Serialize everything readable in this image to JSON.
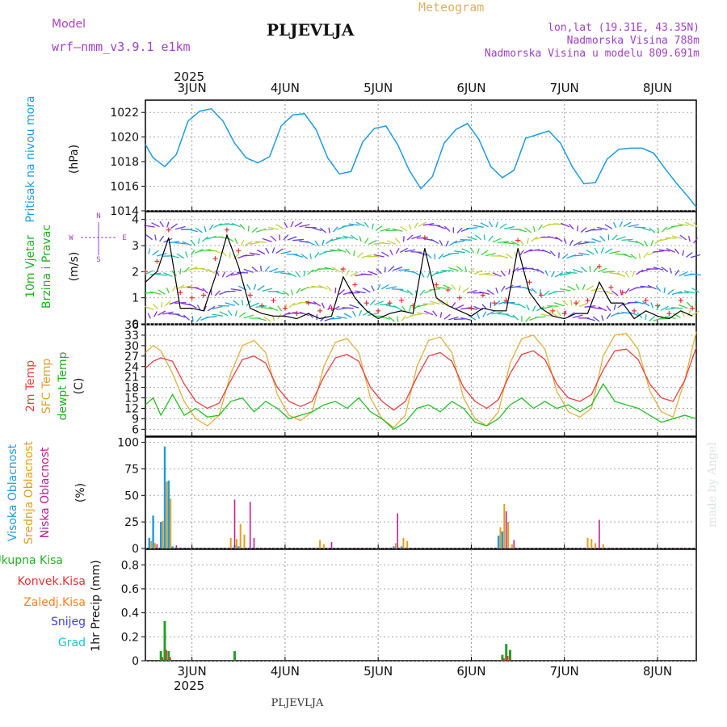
{
  "header": {
    "model_label": "Model",
    "model_name": "wrf—nmm_v3.9.1  e1km",
    "station": "PLJEVLJA",
    "product": "Meteogram",
    "coords": "lon,lat (19.31E, 43.35N)",
    "elevation": "Nadmorska Visina 788m",
    "model_elevation": "Nadmorska Visina u modelu 809.691m",
    "footer_station": "PLJEVLJA",
    "credit": "made by Angel"
  },
  "colors": {
    "pressure": "#1e9be0",
    "speed": "#000000",
    "gust": "#e83030",
    "temp2m": "#e84040",
    "sfc": "#e0b040",
    "dewpt": "#22c022",
    "cloud_high": "#1e9be0",
    "cloud_mid": "#e0a020",
    "cloud_low": "#c02090",
    "precip_total": "#22a022",
    "precip_conv": "#e83030",
    "precip_frz": "#ff8020",
    "snow": "#4040e0",
    "graupel": "#20c0c0"
  },
  "time_axis": {
    "year": "2025",
    "days": [
      "3JUN",
      "4JUN",
      "5JUN",
      "6JUN",
      "7JUN",
      "8JUN"
    ],
    "range_hours": [
      0,
      142
    ]
  },
  "chart_data": [
    {
      "type": "line",
      "panel": "pressure",
      "ylabel_lines": [
        "Pritisak na nivou mora",
        "(hPa)"
      ],
      "yticks": [
        "1014",
        "1016",
        "1018",
        "1020",
        "1022"
      ],
      "ylim": [
        1014,
        1023
      ],
      "grid": true,
      "series": [
        {
          "x": [
            0,
            2,
            5,
            8,
            11,
            14,
            17,
            20,
            23,
            26,
            29,
            32,
            35,
            38,
            41,
            44,
            47,
            50,
            53,
            56,
            59,
            62,
            65,
            68,
            71,
            74,
            77,
            80,
            83,
            86,
            89,
            92,
            95,
            98,
            101,
            104,
            107,
            110,
            113,
            116,
            119,
            122,
            125,
            128,
            131,
            134,
            137,
            140,
            142
          ],
          "values": [
            1019.4,
            1018.3,
            1017.6,
            1018.6,
            1021.3,
            1022.1,
            1022.3,
            1021.3,
            1019.5,
            1018.3,
            1017.9,
            1018.4,
            1020.9,
            1021.8,
            1021.9,
            1020.6,
            1018.3,
            1017.0,
            1017.2,
            1019.6,
            1020.7,
            1020.9,
            1019.4,
            1017.3,
            1015.8,
            1016.8,
            1019.5,
            1020.6,
            1021.1,
            1019.8,
            1017.6,
            1016.7,
            1017.3,
            1019.9,
            1020.2,
            1020.5,
            1019.5,
            1017.6,
            1016.2,
            1016.3,
            1018.2,
            1019.0,
            1019.1,
            1019.1,
            1018.7,
            1017.4,
            1016.2,
            1015.1,
            1014.3
          ]
        }
      ]
    },
    {
      "type": "line",
      "panel": "wind",
      "ylabel_lines": [
        "10m Vjetar",
        "Brzina i Pravac",
        "(m/s)"
      ],
      "compass": {
        "n": "N",
        "w": "W",
        "e": "E",
        "s": "S"
      },
      "yticks": [
        "0",
        "1",
        "2",
        "3",
        "4"
      ],
      "ylim": [
        0,
        4.3
      ],
      "grid": true,
      "series": [
        {
          "name": "speed",
          "x": [
            0,
            3,
            6,
            9,
            12,
            15,
            18,
            21,
            24,
            27,
            30,
            33,
            36,
            39,
            42,
            45,
            48,
            51,
            54,
            57,
            60,
            63,
            66,
            69,
            72,
            75,
            78,
            81,
            84,
            87,
            90,
            93,
            96,
            99,
            102,
            105,
            108,
            111,
            114,
            117,
            120,
            123,
            126,
            129,
            132,
            135,
            138,
            141
          ],
          "values": [
            1.6,
            2.0,
            3.3,
            0.6,
            0.6,
            0.5,
            1.8,
            3.4,
            2.2,
            0.6,
            0.4,
            0.3,
            0.3,
            0.2,
            0.4,
            0.2,
            0.3,
            1.8,
            1.0,
            0.5,
            0.2,
            0.4,
            0.5,
            0.4,
            2.9,
            1.0,
            0.7,
            0.5,
            0.3,
            0.6,
            0.5,
            0.5,
            2.9,
            1.2,
            0.6,
            0.3,
            0.2,
            0.4,
            0.4,
            1.6,
            0.8,
            0.8,
            0.2,
            0.5,
            0.3,
            0.2,
            0.5,
            0.3
          ]
        },
        {
          "name": "gust",
          "x": [
            0,
            3,
            6,
            9,
            12,
            15,
            18,
            21,
            24,
            27,
            30,
            33,
            36,
            39,
            42,
            45,
            48,
            51,
            54,
            57,
            60,
            63,
            66,
            69,
            72,
            75,
            78,
            81,
            84,
            87,
            90,
            93,
            96,
            99,
            102,
            105,
            108,
            111,
            114,
            117,
            120,
            123,
            126,
            129,
            132,
            135,
            138,
            141
          ],
          "values": [
            2.0,
            2.4,
            3.6,
            1.2,
            1.0,
            1.1,
            2.5,
            3.6,
            2.8,
            1.1,
            0.7,
            0.9,
            0.6,
            0.4,
            0.8,
            0.5,
            0.6,
            2.1,
            1.5,
            0.8,
            0.5,
            0.8,
            0.9,
            0.7,
            3.3,
            1.5,
            1.3,
            1.0,
            0.6,
            1.1,
            0.8,
            0.9,
            3.2,
            1.6,
            1.1,
            0.5,
            0.4,
            0.8,
            0.9,
            2.2,
            1.4,
            1.2,
            0.5,
            0.9,
            0.7,
            0.4,
            0.9,
            0.6
          ]
        }
      ]
    },
    {
      "type": "line",
      "panel": "temperature",
      "ylabel_lines": [
        "2m Temp",
        "SFC Temp",
        "dewpt Temp",
        "(C)"
      ],
      "yticks": [
        "6",
        "9",
        "12",
        "15",
        "18",
        "21",
        "24",
        "27",
        "30",
        "33",
        "36"
      ],
      "ylim": [
        4,
        36
      ],
      "grid": true,
      "series": [
        {
          "name": "2m Temp",
          "x": [
            0,
            2,
            4,
            7,
            10,
            13,
            16,
            19,
            22,
            25,
            28,
            31,
            34,
            37,
            40,
            43,
            46,
            49,
            52,
            55,
            58,
            61,
            64,
            67,
            70,
            73,
            76,
            79,
            82,
            85,
            88,
            91,
            94,
            97,
            100,
            103,
            106,
            109,
            112,
            115,
            118,
            121,
            124,
            127,
            130,
            133,
            136,
            139,
            142
          ],
          "values": [
            23.5,
            25.5,
            26.5,
            25.5,
            19,
            14,
            12,
            13.5,
            20,
            26,
            27,
            25,
            18,
            14,
            12.5,
            14,
            21,
            26.5,
            27.5,
            25.5,
            18,
            14,
            11.5,
            14,
            21,
            27,
            28,
            25.5,
            18,
            14,
            12,
            14.5,
            22,
            27.5,
            28.5,
            26,
            19,
            15,
            14,
            16,
            23,
            28.5,
            29,
            26,
            19,
            15,
            14,
            20,
            29.5
          ]
        },
        {
          "name": "SFC Temp",
          "x": [
            0,
            2,
            4,
            7,
            10,
            13,
            16,
            19,
            22,
            25,
            28,
            31,
            34,
            37,
            40,
            43,
            46,
            49,
            52,
            55,
            58,
            61,
            64,
            67,
            70,
            73,
            76,
            79,
            82,
            85,
            88,
            91,
            94,
            97,
            100,
            103,
            106,
            109,
            112,
            115,
            118,
            121,
            124,
            127,
            130,
            133,
            136,
            139,
            142
          ],
          "values": [
            28,
            30,
            28.5,
            22,
            14,
            9,
            7,
            10,
            22,
            30,
            31.5,
            28,
            16,
            10,
            8.5,
            11,
            24,
            31,
            32,
            28,
            15,
            9,
            6.5,
            10,
            24,
            31.5,
            32.5,
            28,
            15,
            9,
            7,
            11,
            25,
            32,
            33,
            29,
            17,
            11,
            9.5,
            12,
            27,
            33,
            33.5,
            29,
            17,
            11,
            9.5,
            20,
            34
          ]
        },
        {
          "name": "dewpt Temp",
          "x": [
            0,
            2,
            4,
            7,
            10,
            13,
            16,
            19,
            22,
            25,
            28,
            31,
            34,
            37,
            40,
            43,
            46,
            49,
            52,
            55,
            58,
            61,
            64,
            67,
            70,
            73,
            76,
            79,
            82,
            85,
            88,
            91,
            94,
            97,
            100,
            103,
            106,
            109,
            112,
            115,
            118,
            121,
            124,
            127,
            130,
            133,
            136,
            139,
            142
          ],
          "values": [
            13,
            15,
            10,
            16,
            10,
            12,
            9.5,
            10,
            14,
            15,
            11,
            14,
            12,
            9,
            10,
            11,
            13,
            14,
            12,
            15,
            11,
            9,
            6,
            8,
            12,
            13,
            11,
            14,
            12,
            8,
            7,
            9,
            13,
            15,
            12,
            14,
            12,
            13,
            11,
            13,
            19,
            14,
            13,
            12,
            10,
            8,
            9,
            10,
            9
          ]
        }
      ]
    },
    {
      "type": "bar",
      "panel": "cloud",
      "ylabel_lines": [
        "Visoka Oblacnost",
        "Srednja Oblacnost",
        "Niska Oblacnost",
        "(%)"
      ],
      "yticks": [
        "0",
        "25",
        "50",
        "75",
        "100"
      ],
      "ylim": [
        0,
        105
      ],
      "grid": true,
      "series": [
        {
          "name": "Visoka Oblacnost",
          "x": [
            1,
            2,
            4,
            5,
            6,
            7,
            23,
            24,
            64,
            66,
            91,
            92
          ],
          "values": [
            10,
            31,
            25,
            96,
            64,
            2,
            3,
            2,
            2,
            2,
            12,
            16
          ]
        },
        {
          "name": "Srednja Oblacnost",
          "x": [
            1.5,
            2.5,
            4.5,
            5.5,
            6.5,
            22,
            23.5,
            24.5,
            25.5,
            45,
            46,
            64.5,
            66.5,
            67.5,
            91.5,
            92.5,
            93.5,
            94.5,
            114,
            115,
            116,
            118
          ],
          "values": [
            7,
            5,
            26,
            63,
            47,
            10,
            9,
            23,
            13,
            8,
            4,
            5,
            10,
            7,
            20,
            42,
            25,
            4,
            10,
            9,
            5,
            4
          ]
        },
        {
          "name": "Niska Oblacnost",
          "x": [
            3,
            8,
            23,
            27,
            28,
            48,
            65,
            93,
            95,
            117
          ],
          "values": [
            4,
            3,
            46,
            44,
            10,
            6,
            33,
            35,
            8,
            27
          ]
        }
      ]
    },
    {
      "type": "bar",
      "panel": "precip",
      "ylabel_lines": [
        "1hr Precip (mm)"
      ],
      "legend": [
        "Ukupna Kisa",
        "Konvek.Kisa",
        "Zaledj.Kisa",
        "Snijeg",
        "Grad"
      ],
      "yticks": [
        "0",
        "0.2",
        "0.4",
        "0.6",
        "0.8"
      ],
      "ylim": [
        0,
        0.93
      ],
      "grid": true,
      "series": [
        {
          "name": "Ukupna Kisa",
          "x": [
            4,
            5,
            6,
            23,
            92,
            93,
            94
          ],
          "values": [
            0.08,
            0.33,
            0.08,
            0.08,
            0.05,
            0.14,
            0.09
          ]
        },
        {
          "name": "Konvek.Kisa",
          "x": [
            4.4,
            5.4,
            6.4,
            92.4,
            93.4
          ],
          "values": [
            0.03,
            0.09,
            0.03,
            0.02,
            0.04
          ]
        }
      ]
    }
  ]
}
